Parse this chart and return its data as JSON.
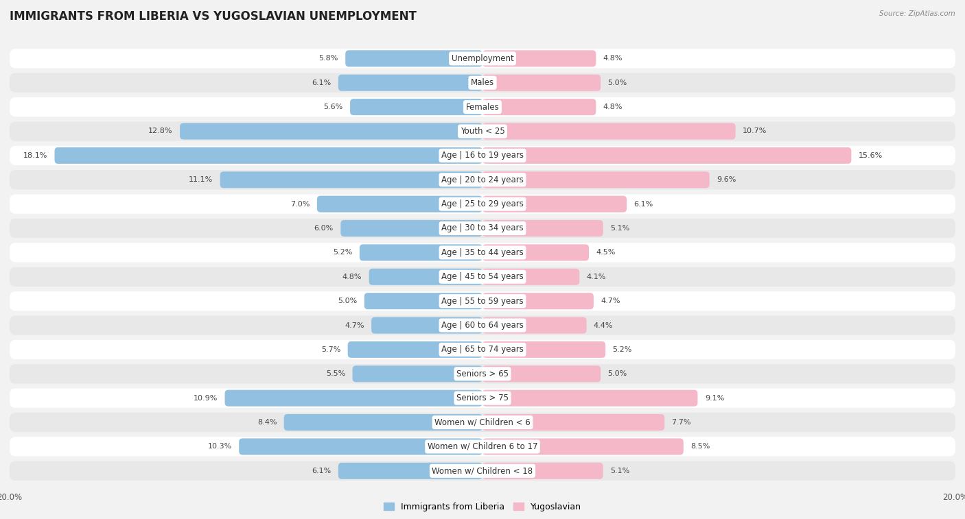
{
  "title": "IMMIGRANTS FROM LIBERIA VS YUGOSLAVIAN UNEMPLOYMENT",
  "source": "Source: ZipAtlas.com",
  "categories": [
    "Unemployment",
    "Males",
    "Females",
    "Youth < 25",
    "Age | 16 to 19 years",
    "Age | 20 to 24 years",
    "Age | 25 to 29 years",
    "Age | 30 to 34 years",
    "Age | 35 to 44 years",
    "Age | 45 to 54 years",
    "Age | 55 to 59 years",
    "Age | 60 to 64 years",
    "Age | 65 to 74 years",
    "Seniors > 65",
    "Seniors > 75",
    "Women w/ Children < 6",
    "Women w/ Children 6 to 17",
    "Women w/ Children < 18"
  ],
  "liberia_values": [
    5.8,
    6.1,
    5.6,
    12.8,
    18.1,
    11.1,
    7.0,
    6.0,
    5.2,
    4.8,
    5.0,
    4.7,
    5.7,
    5.5,
    10.9,
    8.4,
    10.3,
    6.1
  ],
  "yugoslav_values": [
    4.8,
    5.0,
    4.8,
    10.7,
    15.6,
    9.6,
    6.1,
    5.1,
    4.5,
    4.1,
    4.7,
    4.4,
    5.2,
    5.0,
    9.1,
    7.7,
    8.5,
    5.1
  ],
  "liberia_color": "#92c0e0",
  "yugoslav_color": "#f5b8c8",
  "axis_limit": 20.0,
  "bg_color": "#f2f2f2",
  "row_colors": [
    "#ffffff",
    "#e8e8e8"
  ],
  "title_fontsize": 12,
  "label_fontsize": 8.5,
  "value_fontsize": 8,
  "legend_fontsize": 9,
  "bar_height": 0.68
}
